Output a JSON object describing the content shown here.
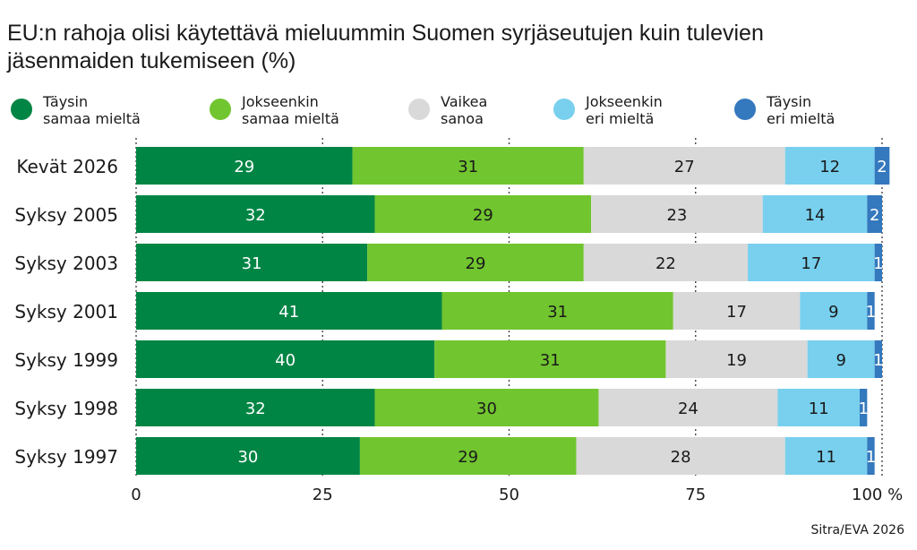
{
  "title_line1": "EU:n rahoja olisi käytettävä mieluummin Suomen syrjäseutujen kuin tulevien",
  "title_line2": "jäsenmaiden tukemiseen (%)",
  "source": "Sitra/EVA 2026",
  "chart_data": {
    "type": "bar",
    "orientation": "horizontal",
    "stacked": true,
    "title": "EU:n rahoja olisi käytettävä mieluummin Suomen syrjäseutujen kuin tulevien jäsenmaiden tukemiseen (%)",
    "categories": [
      "Kevät 2026",
      "Syksy 2005",
      "Syksy 2003",
      "Syksy 2001",
      "Syksy 1999",
      "Syksy 1998",
      "Syksy 1997"
    ],
    "series": [
      {
        "name": "Täysin\nsamaa mieltä",
        "color": "#008545",
        "label_color": "#ffffff",
        "values": [
          29,
          32,
          31,
          41,
          40,
          32,
          30
        ]
      },
      {
        "name": "Jokseenkin\nsamaa mieltä",
        "color": "#71c52f",
        "label_color": "#1a1a1a",
        "values": [
          31,
          29,
          29,
          31,
          31,
          30,
          29
        ]
      },
      {
        "name": "Vaikea\nsanoa",
        "color": "#d9d9d9",
        "label_color": "#1a1a1a",
        "values": [
          27,
          23,
          22,
          17,
          19,
          24,
          28
        ]
      },
      {
        "name": "Jokseenkin\neri mieltä",
        "color": "#78d0ee",
        "label_color": "#1a1a1a",
        "values": [
          12,
          14,
          17,
          9,
          9,
          11,
          11
        ]
      },
      {
        "name": "Täysin\neri mieltä",
        "color": "#3478bd",
        "label_color": "#ffffff",
        "values": [
          2,
          2,
          1,
          1,
          1,
          1,
          1
        ]
      }
    ],
    "xlim": [
      0,
      100
    ],
    "xticks": [
      0,
      25,
      50,
      75,
      100
    ],
    "xtick_labels": [
      "0",
      "25",
      "50",
      "75",
      "100 %"
    ],
    "grid": true,
    "legend_position": "top"
  }
}
